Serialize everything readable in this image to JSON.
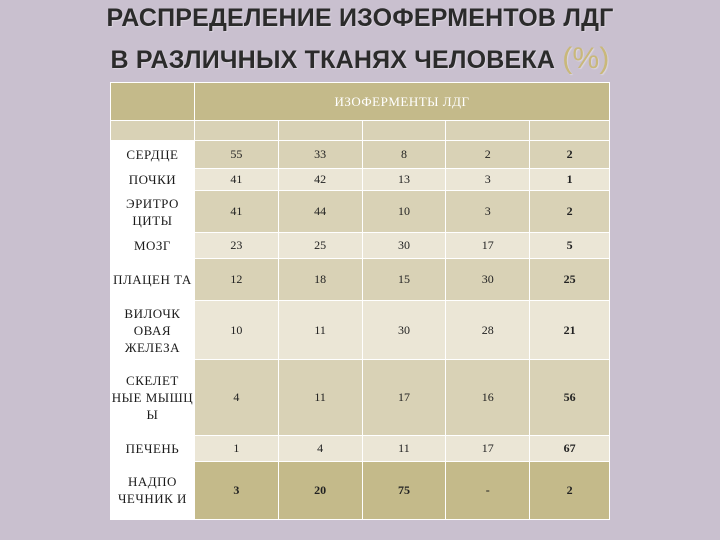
{
  "title": {
    "line1": "РАСПРЕДЕЛЕНИЕ ИЗОФЕРМЕНТОВ ЛДГ",
    "line2": "В РАЗЛИЧНЫХ ТКАНЯХ ЧЕЛОВЕКА",
    "pct": "(%)"
  },
  "table": {
    "header": "ИЗОФЕРМЕНТЫ ЛДГ",
    "rows": [
      {
        "label": "СЕРДЦЕ",
        "values": [
          "55",
          "33",
          "8",
          "2",
          "2"
        ]
      },
      {
        "label": "ПОЧКИ",
        "values": [
          "41",
          "42",
          "13",
          "3",
          "1"
        ]
      },
      {
        "label": "ЭРИТРО ЦИТЫ",
        "values": [
          "41",
          "44",
          "10",
          "3",
          "2"
        ]
      },
      {
        "label": "МОЗГ",
        "values": [
          "23",
          "25",
          "30",
          "17",
          "5"
        ]
      },
      {
        "label": "ПЛАЦЕН ТА",
        "values": [
          "12",
          "18",
          "15",
          "30",
          "25"
        ]
      },
      {
        "label": "ВИЛОЧК ОВАЯ ЖЕЛЕЗА",
        "values": [
          "10",
          "11",
          "30",
          "28",
          "21"
        ]
      },
      {
        "label": "СКЕЛЕТ НЫЕ МЫШЦ Ы",
        "values": [
          "4",
          "11",
          "17",
          "16",
          "56"
        ]
      },
      {
        "label": "ПЕЧЕНЬ",
        "values": [
          "1",
          "4",
          "11",
          "17",
          "67"
        ]
      },
      {
        "label": "НАДПО ЧЕЧНИК И",
        "values": [
          "3",
          "20",
          "75",
          "-",
          "2"
        ]
      }
    ]
  }
}
